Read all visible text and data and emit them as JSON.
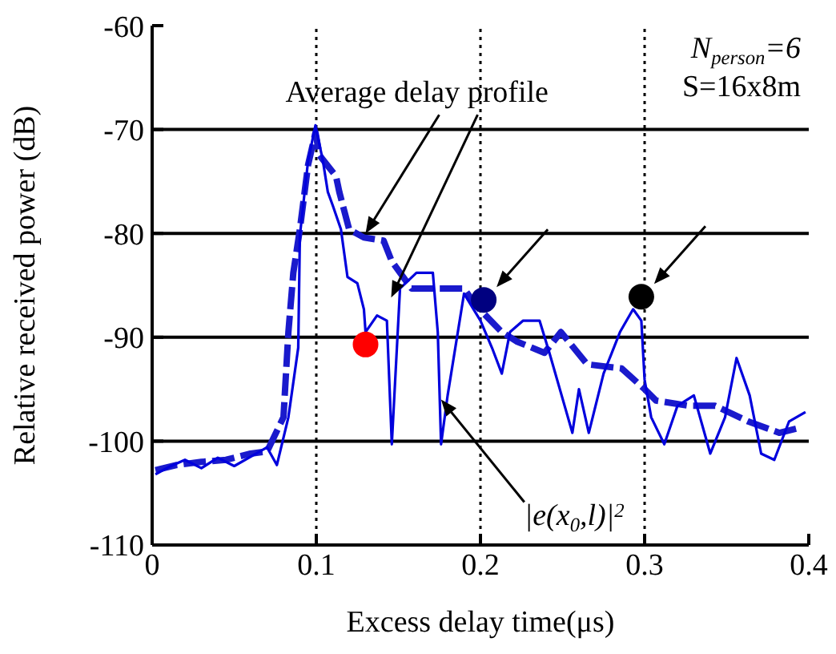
{
  "chart_data": {
    "type": "line",
    "xlabel": "Excess delay time(μs)",
    "ylabel": "Relative received power (dB)",
    "xlim": [
      0,
      0.4
    ],
    "ylim": [
      -110,
      -60
    ],
    "xticks": [
      0,
      0.1,
      0.2,
      0.3,
      0.4
    ],
    "yticks": [
      -110,
      -100,
      -90,
      -80,
      -70,
      -60
    ],
    "grid": "y",
    "marker": "none",
    "series": [
      {
        "color": "#1a1acc",
        "line_style": "dashed",
        "x": [
          0.002,
          0.015,
          0.03,
          0.045,
          0.06,
          0.07,
          0.08,
          0.083,
          0.086,
          0.09,
          0.095,
          0.0995,
          0.102,
          0.112,
          0.114,
          0.12,
          0.129,
          0.141,
          0.146,
          0.158,
          0.168,
          0.174,
          0.19,
          0.197,
          0.213,
          0.222,
          0.239,
          0.249,
          0.265,
          0.286,
          0.3,
          0.307,
          0.327,
          0.343,
          0.363,
          0.382,
          0.395
        ],
        "values": [
          -102.8,
          -102.3,
          -102,
          -101.8,
          -101.2,
          -101,
          -97.7,
          -89.5,
          -83.8,
          -79.6,
          -73.4,
          -70.3,
          -72.5,
          -74.5,
          -76,
          -79.6,
          -80.4,
          -80.7,
          -82.7,
          -85.3,
          -85.3,
          -85.3,
          -85.3,
          -86.9,
          -89.5,
          -90.4,
          -91.5,
          -89.5,
          -92.6,
          -93,
          -95,
          -96.1,
          -96.6,
          -96.6,
          -98.1,
          -99.2,
          -98.7
        ]
      },
      {
        "color": "#0000dd",
        "line_style": "solid",
        "x": [
          0.002,
          0.01,
          0.02,
          0.03,
          0.04,
          0.05,
          0.06,
          0.07,
          0.076,
          0.083,
          0.089,
          0.09,
          0.095,
          0.0995,
          0.104,
          0.107,
          0.11,
          0.115,
          0.119,
          0.125,
          0.129,
          0.13,
          0.137,
          0.143,
          0.146,
          0.151,
          0.161,
          0.171,
          0.174,
          0.176,
          0.18,
          0.19,
          0.2,
          0.207,
          0.213,
          0.218,
          0.226,
          0.236,
          0.242,
          0.256,
          0.26,
          0.266,
          0.275,
          0.285,
          0.293,
          0.298,
          0.3,
          0.304,
          0.312,
          0.32,
          0.33,
          0.34,
          0.349,
          0.356,
          0.364,
          0.371,
          0.379,
          0.388,
          0.398
        ],
        "values": [
          -103.2,
          -102.5,
          -101.8,
          -102.6,
          -101.6,
          -102.4,
          -101.5,
          -100.6,
          -102.3,
          -97.7,
          -91,
          -80.2,
          -73,
          -69.6,
          -73,
          -76,
          -77.3,
          -79.6,
          -84.2,
          -84.8,
          -87.3,
          -89.5,
          -87.9,
          -88.4,
          -100.3,
          -85.3,
          -83.8,
          -83.8,
          -89.5,
          -100.3,
          -95.6,
          -85.8,
          -88.4,
          -91,
          -93.5,
          -89.5,
          -88.4,
          -88.4,
          -91.5,
          -99.2,
          -95,
          -99.2,
          -93.5,
          -89.5,
          -87.3,
          -88.4,
          -94.1,
          -97.7,
          -100.3,
          -96.6,
          -95.6,
          -101.2,
          -97.7,
          -92,
          -95.6,
          -101.2,
          -101.8,
          -98.1,
          -97.2
        ]
      },
      {
        "type": "scatter",
        "marker": "circle",
        "x": [
          0.13,
          0.202,
          0.298
        ],
        "values": [
          -90.7,
          -86.4,
          -86.1
        ],
        "colors": [
          "#ff0000",
          "#000080",
          "#000000"
        ]
      }
    ],
    "ref_lines": [
      {
        "axis": "x",
        "value": 0.1,
        "line_style": "dotted",
        "color": "#000000"
      },
      {
        "axis": "x",
        "value": 0.2,
        "line_style": "dotted",
        "color": "#000000"
      },
      {
        "axis": "x",
        "value": 0.3,
        "line_style": "dotted",
        "color": "#000000"
      }
    ],
    "annotations": [
      {
        "text": "Average delay profile",
        "x": 0.13,
        "y": -80
      },
      {
        "text": "|e(x$_{0}$,l)|$^{2}$",
        "x": 0.176,
        "y": -96
      },
      "N$_{person}$=6",
      "S=16x8m"
    ]
  }
}
